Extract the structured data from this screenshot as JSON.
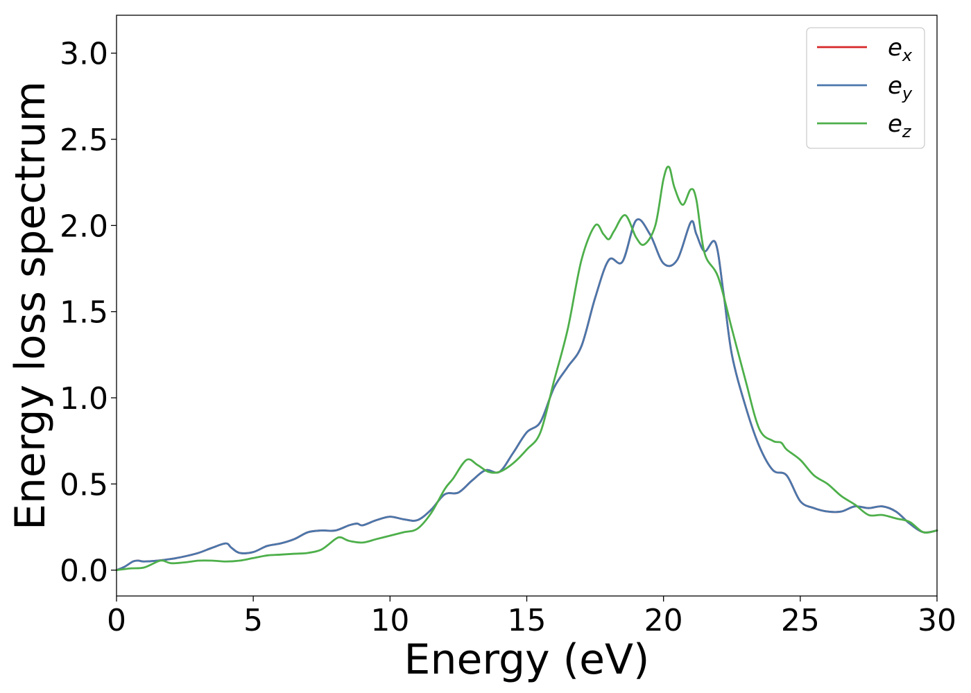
{
  "chart_data": {
    "type": "line",
    "title": "",
    "xlabel": "Energy (eV)",
    "ylabel": "Energy loss spectrum",
    "xlim": [
      0,
      30
    ],
    "ylim": [
      -0.15,
      3.22
    ],
    "xticks": [
      0,
      5,
      10,
      15,
      20,
      25,
      30
    ],
    "xtick_labels": [
      "0",
      "5",
      "10",
      "15",
      "20",
      "25",
      "30"
    ],
    "yticks": [
      0.0,
      0.5,
      1.0,
      1.5,
      2.0,
      2.5,
      3.0
    ],
    "ytick_labels": [
      "0.0",
      "0.5",
      "1.0",
      "1.5",
      "2.0",
      "2.5",
      "3.0"
    ],
    "grid": false,
    "legend_position": "top-right",
    "series": [
      {
        "name": "e_x",
        "label_base": "e",
        "label_sub": "x",
        "color": "#d62728",
        "x": [
          0,
          0.3,
          0.6,
          0.8,
          1,
          1.5,
          2,
          2.5,
          3,
          3.5,
          4,
          4.2,
          4.5,
          5,
          5.5,
          6,
          6.5,
          7,
          7.5,
          8,
          8.5,
          8.8,
          9,
          9.5,
          10,
          10.5,
          11,
          11.5,
          12,
          12.5,
          13,
          13.5,
          14,
          14.5,
          15,
          15.5,
          16,
          16.5,
          17,
          17.5,
          18,
          18.5,
          19,
          19.5,
          20,
          20.5,
          21,
          21.2,
          21.5,
          21.9,
          22.2,
          22.5,
          23,
          23.5,
          24,
          24.5,
          25,
          25.5,
          26,
          26.5,
          27,
          27.5,
          28,
          28.5,
          29,
          29.5,
          30
        ],
        "y": [
          0,
          0.02,
          0.05,
          0.055,
          0.05,
          0.055,
          0.065,
          0.08,
          0.1,
          0.13,
          0.155,
          0.13,
          0.1,
          0.105,
          0.14,
          0.155,
          0.18,
          0.22,
          0.23,
          0.23,
          0.26,
          0.27,
          0.26,
          0.29,
          0.31,
          0.295,
          0.29,
          0.35,
          0.44,
          0.45,
          0.52,
          0.58,
          0.57,
          0.68,
          0.8,
          0.86,
          1.06,
          1.18,
          1.3,
          1.58,
          1.8,
          1.79,
          2.03,
          1.95,
          1.78,
          1.8,
          2.02,
          1.95,
          1.85,
          1.9,
          1.6,
          1.25,
          0.95,
          0.72,
          0.58,
          0.55,
          0.4,
          0.36,
          0.34,
          0.34,
          0.37,
          0.36,
          0.37,
          0.34,
          0.27,
          0.22,
          0.23
        ]
      },
      {
        "name": "e_y",
        "label_base": "e",
        "label_sub": "y",
        "color": "#4a77ab",
        "x": [
          0,
          0.3,
          0.6,
          0.8,
          1,
          1.5,
          2,
          2.5,
          3,
          3.5,
          4,
          4.2,
          4.5,
          5,
          5.5,
          6,
          6.5,
          7,
          7.5,
          8,
          8.5,
          8.8,
          9,
          9.5,
          10,
          10.5,
          11,
          11.5,
          12,
          12.5,
          13,
          13.5,
          14,
          14.5,
          15,
          15.5,
          16,
          16.5,
          17,
          17.5,
          18,
          18.5,
          19,
          19.5,
          20,
          20.5,
          21,
          21.2,
          21.5,
          21.9,
          22.2,
          22.5,
          23,
          23.5,
          24,
          24.5,
          25,
          25.5,
          26,
          26.5,
          27,
          27.5,
          28,
          28.5,
          29,
          29.5,
          30
        ],
        "y": [
          0,
          0.02,
          0.05,
          0.055,
          0.05,
          0.055,
          0.065,
          0.08,
          0.1,
          0.13,
          0.155,
          0.13,
          0.1,
          0.105,
          0.14,
          0.155,
          0.18,
          0.22,
          0.23,
          0.23,
          0.26,
          0.27,
          0.26,
          0.29,
          0.31,
          0.295,
          0.29,
          0.35,
          0.44,
          0.45,
          0.52,
          0.58,
          0.57,
          0.68,
          0.8,
          0.86,
          1.06,
          1.18,
          1.3,
          1.58,
          1.8,
          1.79,
          2.03,
          1.95,
          1.78,
          1.8,
          2.02,
          1.95,
          1.85,
          1.9,
          1.6,
          1.25,
          0.95,
          0.72,
          0.58,
          0.55,
          0.4,
          0.36,
          0.34,
          0.34,
          0.37,
          0.36,
          0.37,
          0.34,
          0.27,
          0.22,
          0.23
        ]
      },
      {
        "name": "e_z",
        "label_base": "e",
        "label_sub": "z",
        "color": "#4daf4a",
        "x": [
          0,
          0.5,
          1,
          1.5,
          1.7,
          2,
          2.5,
          3,
          3.5,
          4,
          4.5,
          5,
          5.5,
          6,
          6.5,
          7,
          7.5,
          8,
          8.2,
          8.5,
          9,
          9.5,
          10,
          10.5,
          11,
          11.5,
          12,
          12.3,
          12.8,
          13.2,
          13.6,
          14,
          14.5,
          15,
          15.5,
          16,
          16.5,
          17,
          17.5,
          17.8,
          18,
          18.2,
          18.6,
          19,
          19.3,
          19.7,
          20,
          20.2,
          20.4,
          20.7,
          21,
          21.2,
          21.5,
          22,
          22.5,
          23,
          23.5,
          24,
          24.3,
          24.5,
          25,
          25.5,
          26,
          26.5,
          27,
          27.5,
          28,
          28.5,
          29,
          29.5,
          30
        ],
        "y": [
          0,
          0.01,
          0.015,
          0.05,
          0.055,
          0.04,
          0.045,
          0.055,
          0.055,
          0.05,
          0.055,
          0.07,
          0.085,
          0.09,
          0.095,
          0.1,
          0.12,
          0.18,
          0.19,
          0.17,
          0.16,
          0.18,
          0.2,
          0.22,
          0.24,
          0.33,
          0.47,
          0.53,
          0.64,
          0.61,
          0.57,
          0.57,
          0.62,
          0.7,
          0.8,
          1.1,
          1.4,
          1.8,
          2.0,
          1.95,
          1.92,
          1.97,
          2.06,
          1.93,
          1.89,
          2.0,
          2.27,
          2.34,
          2.22,
          2.12,
          2.21,
          2.15,
          1.84,
          1.7,
          1.4,
          1.1,
          0.82,
          0.75,
          0.74,
          0.7,
          0.64,
          0.55,
          0.5,
          0.43,
          0.38,
          0.32,
          0.32,
          0.3,
          0.28,
          0.22,
          0.23
        ]
      }
    ]
  }
}
